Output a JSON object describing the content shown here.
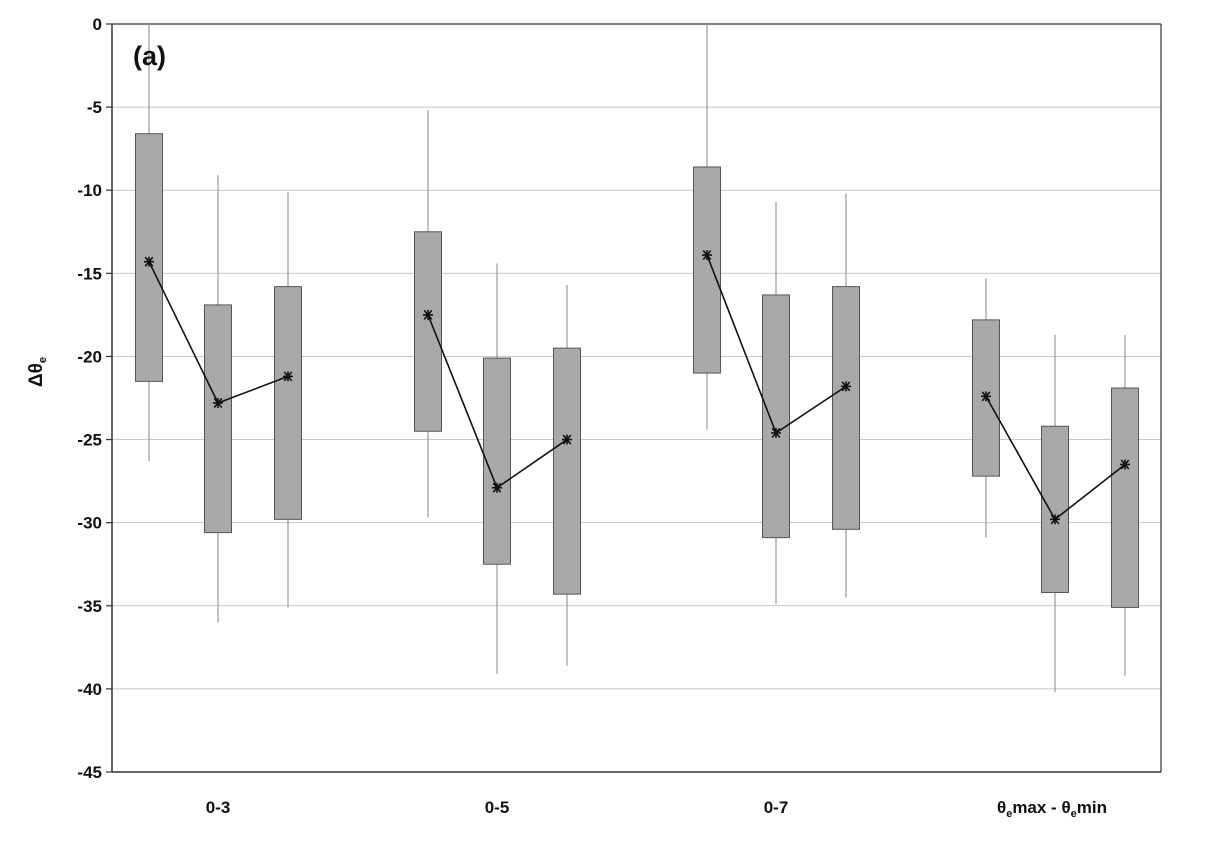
{
  "chart_data": {
    "type": "box",
    "panel_label": "(a)",
    "ylabel": "Δθ",
    "ylabel_subscript": "e",
    "ylim": [
      -45,
      0
    ],
    "yticks": [
      0,
      -5,
      -10,
      -15,
      -20,
      -25,
      -30,
      -35,
      -40,
      -45
    ],
    "grid": true,
    "categories": [
      {
        "label": "0-3"
      },
      {
        "label": "0-5"
      },
      {
        "label": "0-7"
      },
      {
        "label_parts": [
          "θ",
          "e",
          "max - θ",
          "e",
          "min"
        ]
      }
    ],
    "groups": [
      {
        "boxes": [
          {
            "whisker_high": 0,
            "box_high": -6.6,
            "mean": -14.3,
            "box_low": -21.5,
            "whisker_low": -26.3
          },
          {
            "whisker_high": -9.1,
            "box_high": -16.9,
            "mean": -22.8,
            "box_low": -30.6,
            "whisker_low": -36.0
          },
          {
            "whisker_high": -10.1,
            "box_high": -15.8,
            "mean": -21.2,
            "box_low": -29.8,
            "whisker_low": -35.1
          }
        ]
      },
      {
        "boxes": [
          {
            "whisker_high": -5.2,
            "box_high": -12.5,
            "mean": -17.5,
            "box_low": -24.5,
            "whisker_low": -29.7
          },
          {
            "whisker_high": -14.4,
            "box_high": -20.1,
            "mean": -27.9,
            "box_low": -32.5,
            "whisker_low": -39.1
          },
          {
            "whisker_high": -15.7,
            "box_high": -19.5,
            "mean": -25.0,
            "box_low": -34.3,
            "whisker_low": -38.6
          }
        ]
      },
      {
        "boxes": [
          {
            "whisker_high": 0,
            "box_high": -8.6,
            "mean": -13.9,
            "box_low": -21.0,
            "whisker_low": -24.4
          },
          {
            "whisker_high": -10.7,
            "box_high": -16.3,
            "mean": -24.6,
            "box_low": -30.9,
            "whisker_low": -34.9
          },
          {
            "whisker_high": -10.2,
            "box_high": -15.8,
            "mean": -21.8,
            "box_low": -30.4,
            "whisker_low": -34.5
          }
        ]
      },
      {
        "boxes": [
          {
            "whisker_high": -15.3,
            "box_high": -17.8,
            "mean": -22.4,
            "box_low": -27.2,
            "whisker_low": -30.9
          },
          {
            "whisker_high": -18.7,
            "box_high": -24.2,
            "mean": -29.8,
            "box_low": -34.2,
            "whisker_low": -40.2
          },
          {
            "whisker_high": -18.7,
            "box_high": -21.9,
            "mean": -26.5,
            "box_low": -35.1,
            "whisker_low": -39.2
          }
        ]
      }
    ],
    "colors": {
      "box_fill": "#a9a9a9",
      "box_stroke": "#555555",
      "whisker": "#999999",
      "grid": "#c8c8c8",
      "axis": "#333333",
      "mean_line": "#111111",
      "mean_marker": "#111111"
    }
  }
}
